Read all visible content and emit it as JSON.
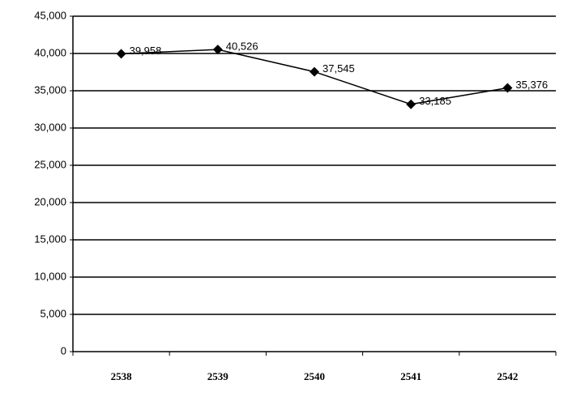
{
  "chart_data": {
    "type": "line",
    "categories": [
      "2538",
      "2539",
      "2540",
      "2541",
      "2542"
    ],
    "values": [
      39958,
      40526,
      37545,
      33185,
      35376
    ],
    "value_labels": [
      "39,958",
      "40,526",
      "37,545",
      "33,185",
      "35,376"
    ],
    "color": "#000000",
    "ylim": [
      0,
      45000
    ],
    "yticks": [
      0,
      {
        "value": 5000,
        "label": "5,000"
      },
      {
        "value": 10000,
        "label": "10,000"
      },
      {
        "value": 15000,
        "label": "15,000"
      },
      {
        "value": 20000,
        "label": "20,000"
      },
      {
        "value": 25000,
        "label": "25,000"
      },
      {
        "value": 30000,
        "label": "30,000"
      },
      {
        "value": 35000,
        "label": "35,000"
      },
      {
        "value": 40000,
        "label": "40,000"
      },
      {
        "value": 45000,
        "label": "45,000"
      }
    ],
    "grid": true
  }
}
